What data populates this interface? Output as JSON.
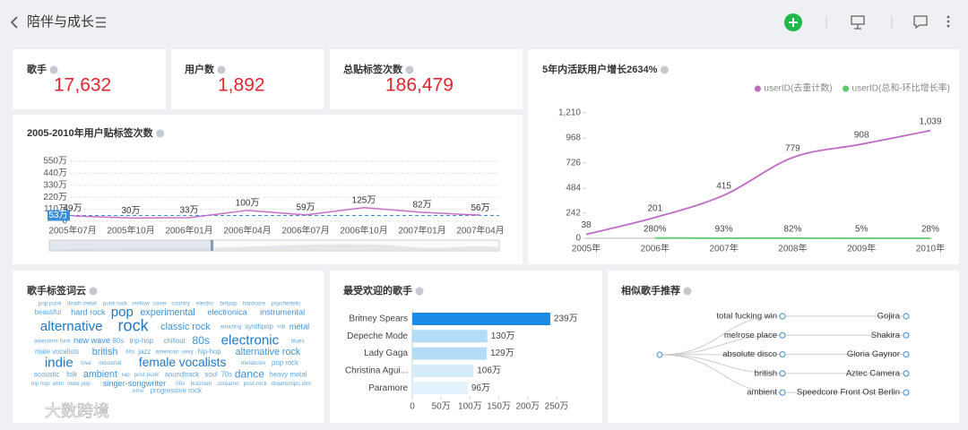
{
  "header": {
    "title": "陪伴与成长"
  },
  "kpis": [
    {
      "label": "歌手",
      "value": "17,632"
    },
    {
      "label": "用户数",
      "value": "1,892"
    },
    {
      "label": "总贴标签次数",
      "value": "186,479"
    }
  ],
  "chart_data": [
    {
      "type": "line",
      "title": "2005-2010年用户贴标签次数",
      "categories": [
        "2005年07月",
        "2005年10月",
        "2006年01月",
        "2006年04月",
        "2006年07月",
        "2006年10月",
        "2007年01月",
        "2007年04月"
      ],
      "values": [
        49,
        30,
        33,
        100,
        59,
        125,
        82,
        56
      ],
      "value_labels": [
        "49万",
        "30万",
        "33万",
        "100万",
        "59万",
        "125万",
        "82万",
        "56万"
      ],
      "color": "#c86fc9",
      "average": {
        "value": 53,
        "label": "53万",
        "color": "#3a8fd6"
      },
      "ylim": [
        0,
        550
      ],
      "yticks": [
        0,
        {
          "value": 110,
          "label": "110万"
        },
        {
          "value": 220,
          "label": "220万"
        },
        {
          "value": 330,
          "label": "330万"
        },
        {
          "value": 440,
          "label": "440万"
        },
        {
          "value": 550,
          "label": "550万"
        }
      ],
      "grid": true
    },
    {
      "type": "line",
      "title": "5年内活跃用户增长2634%",
      "categories": [
        "2005年",
        "2006年",
        "2007年",
        "2008年",
        "2009年",
        "2010年"
      ],
      "series": [
        {
          "name": "userID(去重计数)",
          "color": "#c06bc4",
          "values": [
            38,
            201,
            415,
            779,
            908,
            1039
          ],
          "value_labels": [
            "38",
            "201",
            "415",
            "779",
            "908",
            "1,039"
          ]
        },
        {
          "name": "userID(总和-环比增长率)",
          "color": "#5cc96a",
          "values": [
            null,
            2.8,
            0.93,
            0.82,
            0.05,
            0.28
          ],
          "value_labels": [
            null,
            "280%",
            "93%",
            "82%",
            "5%",
            "28%"
          ]
        }
      ],
      "ylim": [
        0,
        1210
      ],
      "yticks": [
        0,
        242,
        484,
        726,
        968,
        {
          "value": 1210,
          "label": "1,210"
        }
      ],
      "grid": false,
      "legend": "top-right"
    },
    {
      "type": "bar",
      "orientation": "horizontal",
      "title": "最受欢迎的歌手",
      "categories": [
        "Britney Spears",
        "Depeche Mode",
        "Lady Gaga",
        "Christina Agui...",
        "Paramore"
      ],
      "values": [
        239,
        130,
        129,
        106,
        96
      ],
      "value_labels": [
        "239万",
        "130万",
        "129万",
        "106万",
        "96万"
      ],
      "colors": [
        "#1a8ae5",
        "#b3dcf7",
        "#b3dcf7",
        "#d6ecfa",
        "#e3f2fc"
      ],
      "xlim": [
        0,
        250
      ],
      "xticks": [
        0,
        {
          "value": 50,
          "label": "50万"
        },
        {
          "value": 100,
          "label": "100万"
        },
        {
          "value": 150,
          "label": "150万"
        },
        {
          "value": 200,
          "label": "200万"
        },
        {
          "value": 250,
          "label": "250万"
        }
      ]
    }
  ],
  "word_cloud": {
    "title": "歌手标签词云",
    "words": [
      {
        "text": "pop punk",
        "weight": 2
      },
      {
        "text": "death metal",
        "weight": 2
      },
      {
        "text": "punk rock",
        "weight": 2
      },
      {
        "text": "mellow",
        "weight": 2
      },
      {
        "text": "cover",
        "weight": 2
      },
      {
        "text": "country",
        "weight": 2
      },
      {
        "text": "electro",
        "weight": 2
      },
      {
        "text": "britpop",
        "weight": 2
      },
      {
        "text": "hardcore",
        "weight": 2
      },
      {
        "text": "psychedelic",
        "weight": 2
      },
      {
        "text": "beautiful",
        "weight": 3
      },
      {
        "text": "hard rock",
        "weight": 4
      },
      {
        "text": "pop",
        "weight": 8
      },
      {
        "text": "experimental",
        "weight": 5
      },
      {
        "text": "electronica",
        "weight": 4
      },
      {
        "text": "instrumental",
        "weight": 4
      },
      {
        "text": "alternative",
        "weight": 8
      },
      {
        "text": "rock",
        "weight": 10
      },
      {
        "text": "classic rock",
        "weight": 5
      },
      {
        "text": "amazing",
        "weight": 2
      },
      {
        "text": "synthpop",
        "weight": 3
      },
      {
        "text": "rnb",
        "weight": 2
      },
      {
        "text": "metal",
        "weight": 4
      },
      {
        "text": "awesome",
        "weight": 2
      },
      {
        "text": "funk",
        "weight": 2
      },
      {
        "text": "new wave",
        "weight": 4
      },
      {
        "text": "90s",
        "weight": 3
      },
      {
        "text": "trip-hop",
        "weight": 3
      },
      {
        "text": "chillout",
        "weight": 3
      },
      {
        "text": "80s",
        "weight": 6
      },
      {
        "text": "electronic",
        "weight": 8
      },
      {
        "text": "blues",
        "weight": 2
      },
      {
        "text": "male vocalists",
        "weight": 3
      },
      {
        "text": "british",
        "weight": 5
      },
      {
        "text": "60s",
        "weight": 2
      },
      {
        "text": "jazz",
        "weight": 3
      },
      {
        "text": "american",
        "weight": 2
      },
      {
        "text": "sexy",
        "weight": 2
      },
      {
        "text": "hip-hop",
        "weight": 3
      },
      {
        "text": "alternative rock",
        "weight": 5
      },
      {
        "text": "indie",
        "weight": 8
      },
      {
        "text": "love",
        "weight": 2
      },
      {
        "text": "industrial",
        "weight": 2
      },
      {
        "text": "female vocalists",
        "weight": 7
      },
      {
        "text": "metalcore",
        "weight": 2
      },
      {
        "text": "pop rock",
        "weight": 3
      },
      {
        "text": "acoustic",
        "weight": 3
      },
      {
        "text": "folk",
        "weight": 3
      },
      {
        "text": "ambient",
        "weight": 5
      },
      {
        "text": "rap",
        "weight": 2
      },
      {
        "text": "post-punk",
        "weight": 2
      },
      {
        "text": "soundtrack",
        "weight": 3
      },
      {
        "text": "soul",
        "weight": 3
      },
      {
        "text": "70s",
        "weight": 3
      },
      {
        "text": "dance",
        "weight": 6
      },
      {
        "text": "heavy metal",
        "weight": 3
      },
      {
        "text": "hip hop",
        "weight": 2
      },
      {
        "text": "ebm",
        "weight": 2
      },
      {
        "text": "indie pop",
        "weight": 2
      },
      {
        "text": "singer-songwriter",
        "weight": 4
      },
      {
        "text": "00s",
        "weight": 2
      },
      {
        "text": "brazilian",
        "weight": 2
      },
      {
        "text": "screamo",
        "weight": 2
      },
      {
        "text": "post-rock",
        "weight": 2
      },
      {
        "text": "downtempo",
        "weight": 2
      },
      {
        "text": "idm",
        "weight": 2
      },
      {
        "text": "emo",
        "weight": 2
      },
      {
        "text": "progressive rock",
        "weight": 3
      }
    ]
  },
  "similar_artists": {
    "title": "相似歌手推荐",
    "pairs": [
      {
        "tag": "total fucking win",
        "artist": "Gojira"
      },
      {
        "tag": "melrose place",
        "artist": "Shakira"
      },
      {
        "tag": "absolute disco",
        "artist": "Gloria Gaynor"
      },
      {
        "tag": "british",
        "artist": "Aztec Camera"
      },
      {
        "tag": "ambient",
        "artist": "Speedcore Front Ost Berlin"
      }
    ]
  },
  "watermark": "大数跨境"
}
